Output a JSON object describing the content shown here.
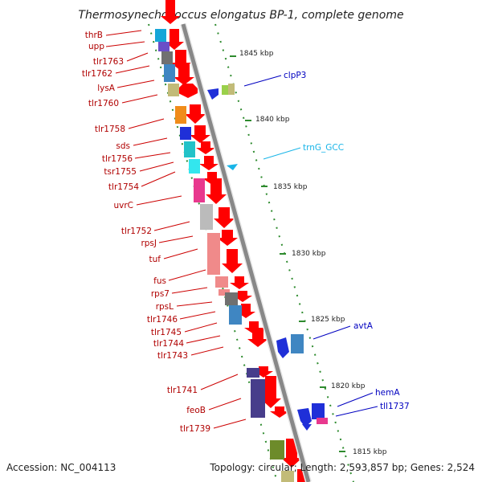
{
  "title": "Thermosynechococcus elongatus BP-1, complete genome",
  "footer": {
    "accession": "Accession: NC_004113",
    "summary": "Topology: circular; Length: 2,593,857 bp; Genes: 2,524"
  },
  "colors": {
    "backbone": "#888888",
    "dots": "#2e8b2e",
    "forward_arrow": "#ff0000",
    "left_label": "#b00000",
    "right_label_blue": "#0000c0",
    "right_label_cyan": "#19b5e8"
  },
  "scale_ticks": [
    {
      "label": "1845 kbp"
    },
    {
      "label": "1840 kbp"
    },
    {
      "label": "1835 kbp"
    },
    {
      "label": "1830 kbp"
    },
    {
      "label": "1825 kbp"
    },
    {
      "label": "1820 kbp"
    },
    {
      "label": "1815 kbp"
    }
  ],
  "left_genes": [
    {
      "label": "thrB",
      "color": "#16a6d8"
    },
    {
      "label": "upp",
      "color": "#6a4fc8"
    },
    {
      "label": "tlr1763",
      "color": "#707070"
    },
    {
      "label": "tlr1762",
      "color": "#3f86c2"
    },
    {
      "label": "lysA",
      "color": "#c2bb78"
    },
    {
      "label": "tlr1760",
      "color": "#c2bb78"
    },
    {
      "label": "tlr1758",
      "color": "#f08c1a"
    },
    {
      "label": "sds",
      "color": "#1f2fd8"
    },
    {
      "label": "tlr1756",
      "color": "#22c2c8"
    },
    {
      "label": "tsr1755",
      "color": "#33e6ee"
    },
    {
      "label": "tlr1754",
      "color": "#33e6ee"
    },
    {
      "label": "uvrC",
      "color": "#e8388e"
    },
    {
      "label": "tlr1752",
      "color": "#bbbbbb"
    },
    {
      "label": "rpsJ",
      "color": "#f08a8a"
    },
    {
      "label": "tuf",
      "color": "#f08a8a"
    },
    {
      "label": "fus",
      "color": "#f08a8a"
    },
    {
      "label": "rps7",
      "color": "#f08a8a"
    },
    {
      "label": "rpsL",
      "color": "#f08a8a"
    },
    {
      "label": "tlr1746",
      "color": "#707070"
    },
    {
      "label": "tlr1745",
      "color": "#3f86c2"
    },
    {
      "label": "tlr1744",
      "color": "#3f86c2"
    },
    {
      "label": "tlr1743",
      "color": "#3f86c2"
    },
    {
      "label": "tlr1741",
      "color": "#473d8b"
    },
    {
      "label": "feoB",
      "color": "#473d8b"
    },
    {
      "label": "tlr1739",
      "color": "#473d8b"
    }
  ],
  "right_genes": [
    {
      "label": "clpP3",
      "label_color": "#0000c0"
    },
    {
      "label": "trnG_GCC",
      "label_color": "#19b5e8"
    },
    {
      "label": "avtA",
      "label_color": "#0000c0"
    },
    {
      "label": "hemA",
      "label_color": "#0000c0"
    },
    {
      "label": "tll1737",
      "label_color": "#0000c0"
    }
  ]
}
